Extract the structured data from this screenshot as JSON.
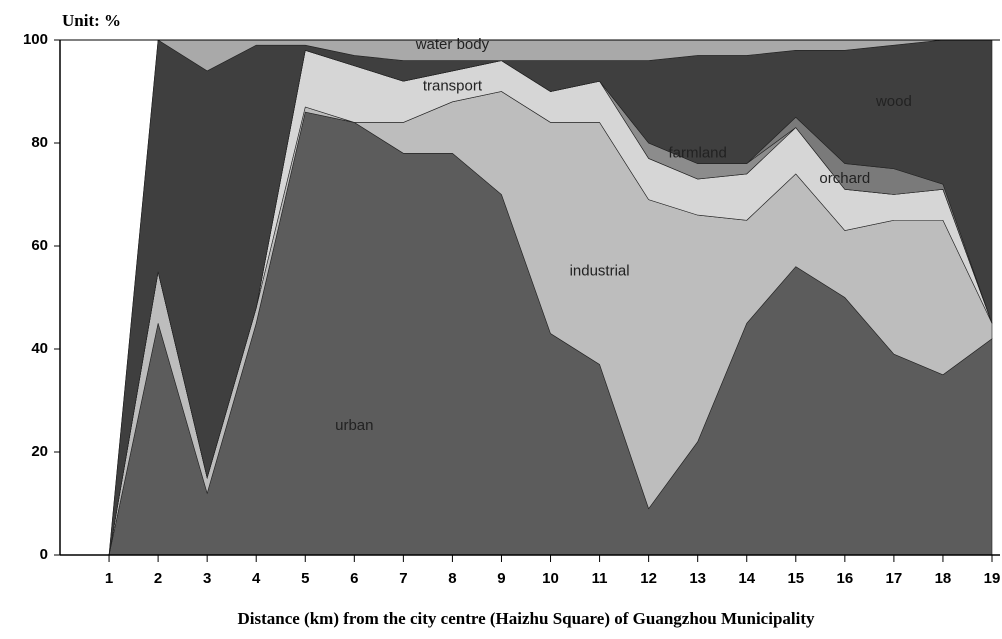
{
  "chart_data": {
    "type": "stacked_area",
    "title": "Unit: %",
    "x_label": "Distance (km) from the city centre (Haizhu Square) of Guangzhou Municipality",
    "x": [
      1,
      2,
      3,
      4,
      5,
      6,
      7,
      8,
      9,
      10,
      11,
      12,
      13,
      14,
      15,
      16,
      17,
      18,
      19
    ],
    "xlim": [
      0,
      19
    ],
    "xticks": [
      1,
      2,
      3,
      4,
      5,
      6,
      7,
      8,
      9,
      10,
      11,
      12,
      13,
      14,
      15,
      16,
      17,
      18,
      19
    ],
    "ylim": [
      0,
      100
    ],
    "yticks": [
      0,
      20,
      40,
      60,
      80,
      100
    ],
    "series": [
      {
        "name": "urban",
        "color": "#5c5c5c",
        "values": [
          0,
          45,
          12,
          45,
          86,
          84,
          78,
          78,
          70,
          43,
          37,
          9,
          22,
          45,
          56,
          50,
          39,
          35,
          42
        ]
      },
      {
        "name": "industrial",
        "color": "#bdbdbd",
        "values": [
          0,
          10,
          3,
          3,
          1,
          0,
          6,
          10,
          20,
          41,
          47,
          60,
          44,
          20,
          18,
          13,
          26,
          30,
          3
        ]
      },
      {
        "name": "transport",
        "color": "#d6d6d6",
        "values": [
          0,
          0,
          0,
          0,
          11,
          11,
          8,
          6,
          6,
          6,
          8,
          8,
          7,
          9,
          9,
          8,
          5,
          6,
          0
        ]
      },
      {
        "name": "farmland",
        "color": "#8c8c8c",
        "values": [
          0,
          0,
          0,
          0,
          0,
          0,
          0,
          0,
          0,
          0,
          0,
          3,
          3,
          2,
          0,
          0,
          0,
          0,
          0
        ]
      },
      {
        "name": "orchard",
        "color": "#7a7a7a",
        "values": [
          0,
          0,
          0,
          0,
          0,
          0,
          0,
          0,
          0,
          0,
          0,
          0,
          0,
          0,
          2,
          5,
          5,
          1,
          0
        ]
      },
      {
        "name": "wood",
        "color": "#3f3f3f",
        "values": [
          0,
          45,
          79,
          51,
          1,
          2,
          4,
          2,
          0,
          6,
          4,
          16,
          21,
          21,
          13,
          22,
          24,
          28,
          55
        ]
      },
      {
        "name": "water body",
        "color": "#a9a9a9",
        "values": [
          0,
          0,
          6,
          1,
          1,
          3,
          4,
          4,
          4,
          4,
          4,
          4,
          3,
          3,
          2,
          2,
          1,
          0,
          0
        ]
      }
    ]
  }
}
